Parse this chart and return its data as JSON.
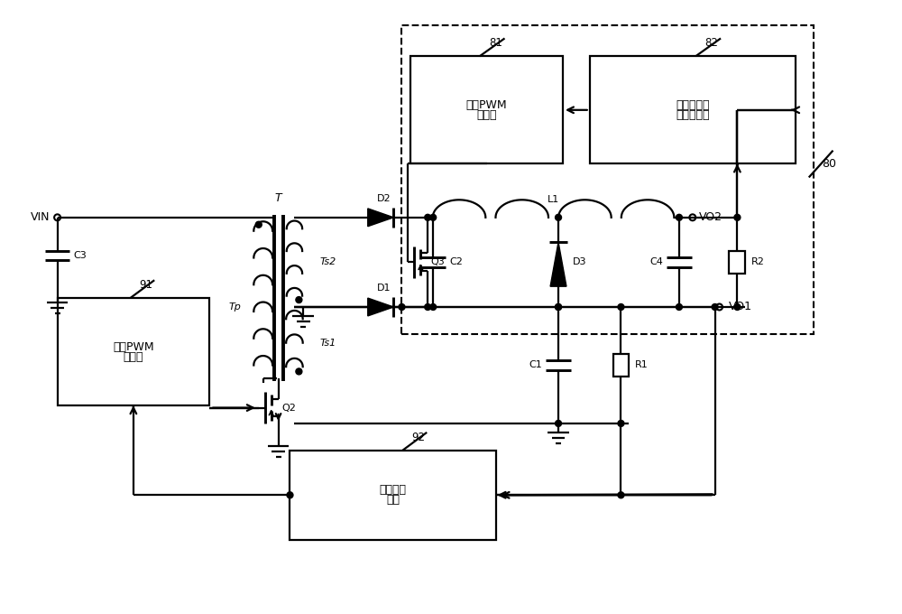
{
  "bg_color": "#ffffff",
  "line_color": "#000000",
  "lw": 1.6,
  "fig_width": 10.0,
  "fig_height": 6.8,
  "dpi": 100,
  "labels": {
    "VIN": "VIN",
    "C3": "C3",
    "Tp": "Tp",
    "T": "T",
    "Ts2": "Ts2",
    "Ts1": "Ts1",
    "D2": "D2",
    "D1": "D1",
    "D3": "D3",
    "Q3": "Q3",
    "Q2": "Q2",
    "L1": "L1",
    "C2": "C2",
    "C4": "C4",
    "C1": "C1",
    "R2": "R2",
    "R1": "R1",
    "VO2": "VO2",
    "VO1": "VO1",
    "box81": "第三PWM\n控制器",
    "box82": "第二基准误\n差放大电路",
    "box91": "第二PWM\n控制器",
    "box92": "反馈隔离\n单元",
    "n80": "80",
    "n81": "81",
    "n82": "82",
    "n91": "91",
    "n92": "92"
  }
}
